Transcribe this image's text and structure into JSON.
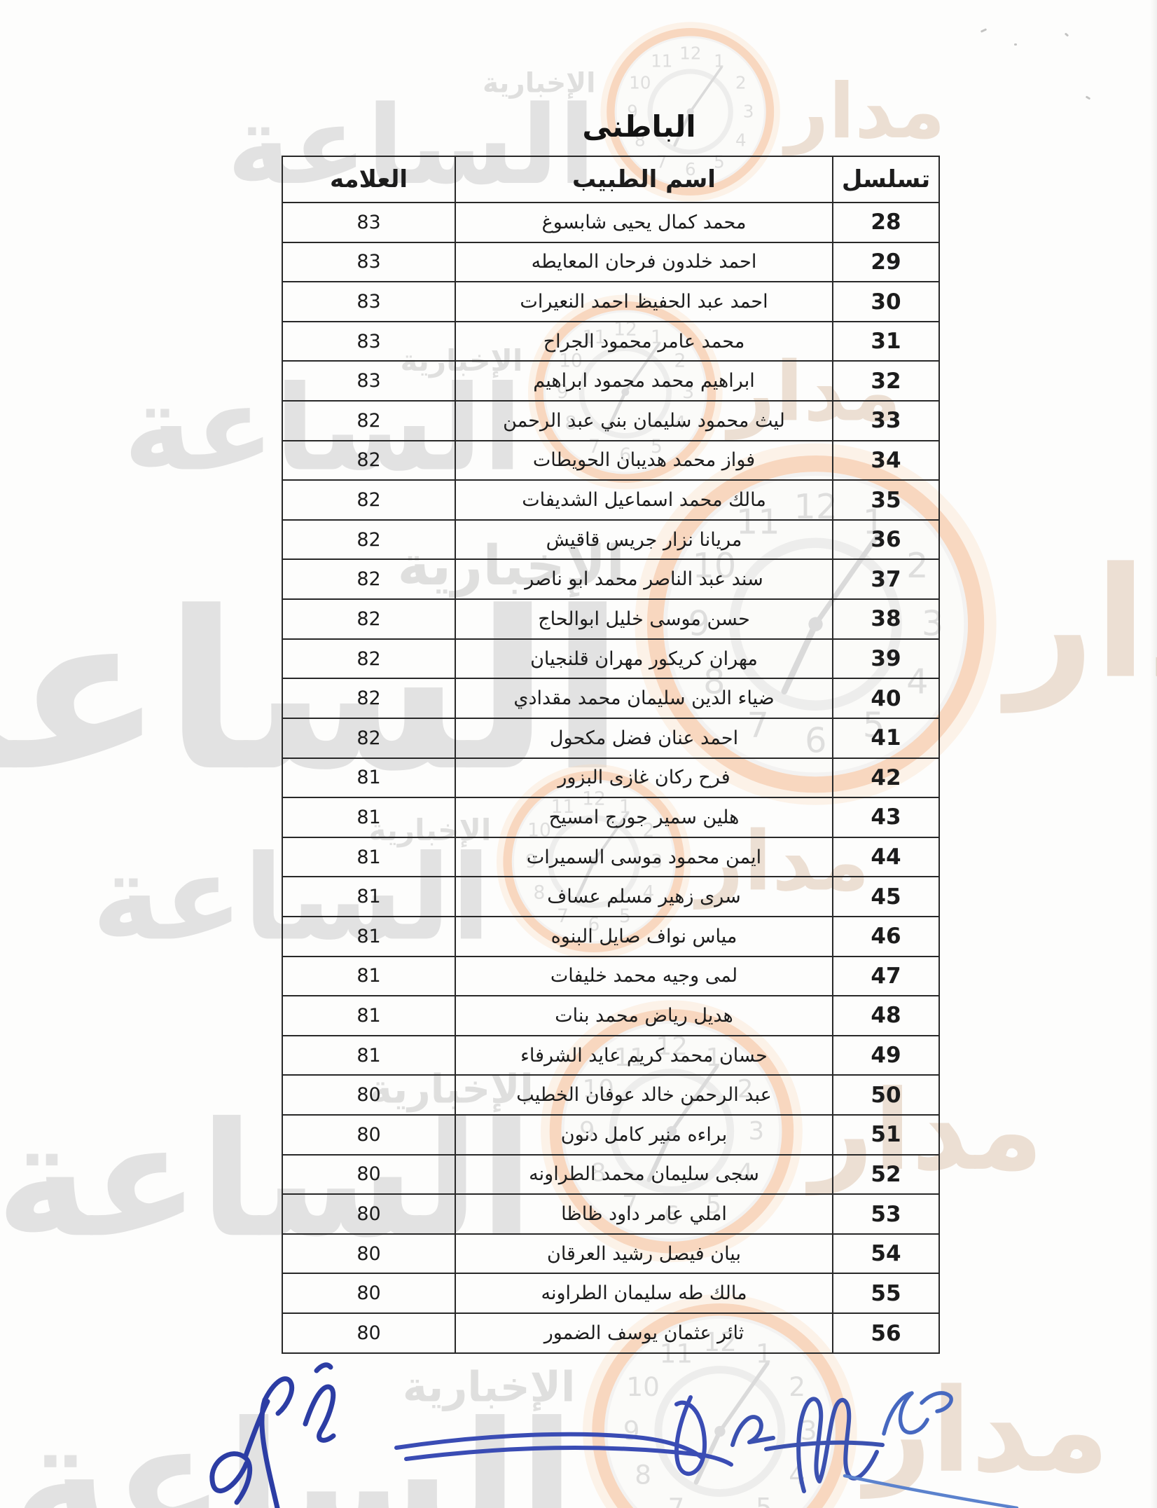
{
  "document": {
    "title": "الباطنى",
    "table": {
      "headers": {
        "serial": "تسلسل",
        "name": "اسم الطبيب",
        "mark": "العلامه"
      },
      "rows": [
        {
          "serial": "28",
          "name": "محمد كمال يحيى شابسوغ",
          "mark": "83"
        },
        {
          "serial": "29",
          "name": "احمد خلدون فرحان المعايطه",
          "mark": "83"
        },
        {
          "serial": "30",
          "name": "احمد عبد الحفيظ احمد النعيرات",
          "mark": "83"
        },
        {
          "serial": "31",
          "name": "محمد عامر محمود الجراح",
          "mark": "83"
        },
        {
          "serial": "32",
          "name": "ابراهيم محمد محمود ابراهيم",
          "mark": "83"
        },
        {
          "serial": "33",
          "name": "ليث محمود سليمان بني عبد الرحمن",
          "mark": "82"
        },
        {
          "serial": "34",
          "name": "فواز محمد هديبان الحويطات",
          "mark": "82"
        },
        {
          "serial": "35",
          "name": "مالك محمد اسماعيل الشديفات",
          "mark": "82"
        },
        {
          "serial": "36",
          "name": "مريانا نزار جريس قاقيش",
          "mark": "82"
        },
        {
          "serial": "37",
          "name": "سند عبد الناصر محمد ابو ناصر",
          "mark": "82"
        },
        {
          "serial": "38",
          "name": "حسن موسى خليل ابوالحاج",
          "mark": "82"
        },
        {
          "serial": "39",
          "name": "مهران كريكور مهران قلنجيان",
          "mark": "82"
        },
        {
          "serial": "40",
          "name": "ضياء الدين سليمان محمد مقدادي",
          "mark": "82"
        },
        {
          "serial": "41",
          "name": "احمد عنان فضل مكحول",
          "mark": "82"
        },
        {
          "serial": "42",
          "name": "فرح ركان غازى البزور",
          "mark": "81"
        },
        {
          "serial": "43",
          "name": "هلين سمير جورج امسيح",
          "mark": "81"
        },
        {
          "serial": "44",
          "name": "ايمن محمود موسى السميرات",
          "mark": "81"
        },
        {
          "serial": "45",
          "name": "سرى زهير مسلم عساف",
          "mark": "81"
        },
        {
          "serial": "46",
          "name": "مياس نواف صايل البنوه",
          "mark": "81"
        },
        {
          "serial": "47",
          "name": "لمى وجيه محمد خليفات",
          "mark": "81"
        },
        {
          "serial": "48",
          "name": "هديل رياض محمد بنات",
          "mark": "81"
        },
        {
          "serial": "49",
          "name": "حسان محمد كريم عايد الشرفاء",
          "mark": "81"
        },
        {
          "serial": "50",
          "name": "عبد الرحمن خالد عوفان الخطيب",
          "mark": "80"
        },
        {
          "serial": "51",
          "name": "براءه منير كامل دنون",
          "mark": "80"
        },
        {
          "serial": "52",
          "name": "سجى سليمان محمد الطراونه",
          "mark": "80"
        },
        {
          "serial": "53",
          "name": "املي عامر داود ظاظا",
          "mark": "80"
        },
        {
          "serial": "54",
          "name": "بيان فيصل رشيد العرقان",
          "mark": "80"
        },
        {
          "serial": "55",
          "name": "مالك طه سليمان الطراونه",
          "mark": "80"
        },
        {
          "serial": "56",
          "name": "ثائر عثمان يوسف الضمور",
          "mark": "80"
        }
      ]
    },
    "watermark": {
      "brand_main": "الساعة",
      "brand_side": "مدار",
      "brand_sub": "الإخبارية",
      "clock_numerals": [
        "12",
        "1",
        "2",
        "3",
        "4",
        "5",
        "6",
        "7",
        "8",
        "9",
        "10",
        "11"
      ]
    }
  }
}
